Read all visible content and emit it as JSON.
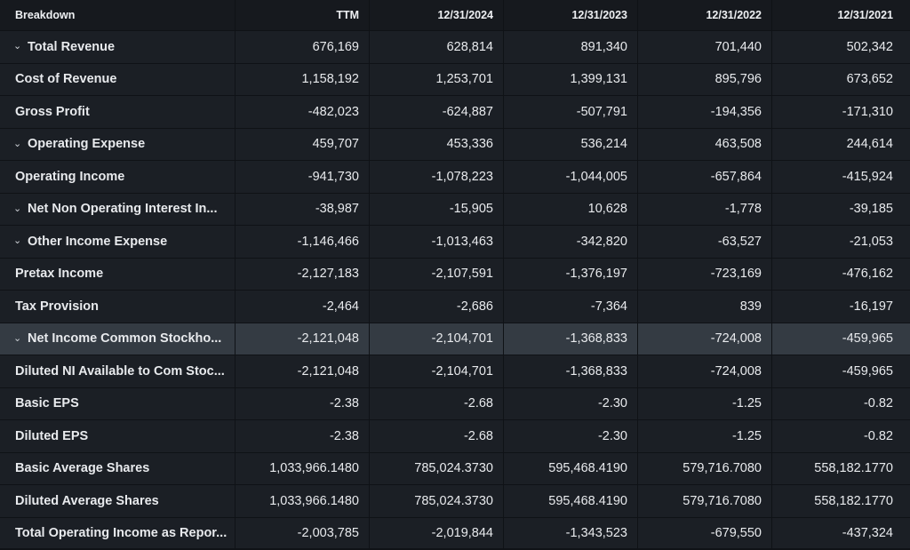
{
  "header": {
    "breakdown": "Breakdown",
    "columns": [
      "TTM",
      "12/31/2024",
      "12/31/2023",
      "12/31/2022",
      "12/31/2021"
    ]
  },
  "rows": [
    {
      "label": "Total Revenue",
      "expandable": true,
      "values": [
        "676,169",
        "628,814",
        "891,340",
        "701,440",
        "502,342"
      ]
    },
    {
      "label": "Cost of Revenue",
      "expandable": false,
      "values": [
        "1,158,192",
        "1,253,701",
        "1,399,131",
        "895,796",
        "673,652"
      ]
    },
    {
      "label": "Gross Profit",
      "expandable": false,
      "values": [
        "-482,023",
        "-624,887",
        "-507,791",
        "-194,356",
        "-171,310"
      ]
    },
    {
      "label": "Operating Expense",
      "expandable": true,
      "values": [
        "459,707",
        "453,336",
        "536,214",
        "463,508",
        "244,614"
      ]
    },
    {
      "label": "Operating Income",
      "expandable": false,
      "values": [
        "-941,730",
        "-1,078,223",
        "-1,044,005",
        "-657,864",
        "-415,924"
      ]
    },
    {
      "label": "Net Non Operating Interest In...",
      "expandable": true,
      "values": [
        "-38,987",
        "-15,905",
        "10,628",
        "-1,778",
        "-39,185"
      ]
    },
    {
      "label": "Other Income Expense",
      "expandable": true,
      "values": [
        "-1,146,466",
        "-1,013,463",
        "-342,820",
        "-63,527",
        "-21,053"
      ]
    },
    {
      "label": "Pretax Income",
      "expandable": false,
      "values": [
        "-2,127,183",
        "-2,107,591",
        "-1,376,197",
        "-723,169",
        "-476,162"
      ]
    },
    {
      "label": "Tax Provision",
      "expandable": false,
      "values": [
        "-2,464",
        "-2,686",
        "-7,364",
        "839",
        "-16,197"
      ]
    },
    {
      "label": "Net Income Common Stockho...",
      "expandable": true,
      "highlight": true,
      "values": [
        "-2,121,048",
        "-2,104,701",
        "-1,368,833",
        "-724,008",
        "-459,965"
      ]
    },
    {
      "label": "Diluted NI Available to Com Stoc...",
      "expandable": false,
      "values": [
        "-2,121,048",
        "-2,104,701",
        "-1,368,833",
        "-724,008",
        "-459,965"
      ]
    },
    {
      "label": "Basic EPS",
      "expandable": false,
      "values": [
        "-2.38",
        "-2.68",
        "-2.30",
        "-1.25",
        "-0.82"
      ]
    },
    {
      "label": "Diluted EPS",
      "expandable": false,
      "values": [
        "-2.38",
        "-2.68",
        "-2.30",
        "-1.25",
        "-0.82"
      ]
    },
    {
      "label": "Basic Average Shares",
      "expandable": false,
      "values": [
        "1,033,966.1480",
        "785,024.3730",
        "595,468.4190",
        "579,716.7080",
        "558,182.1770"
      ]
    },
    {
      "label": "Diluted Average Shares",
      "expandable": false,
      "values": [
        "1,033,966.1480",
        "785,024.3730",
        "595,468.4190",
        "579,716.7080",
        "558,182.1770"
      ]
    },
    {
      "label": "Total Operating Income as Repor...",
      "expandable": false,
      "values": [
        "-2,003,785",
        "-2,019,844",
        "-1,343,523",
        "-679,550",
        "-437,324"
      ]
    }
  ]
}
